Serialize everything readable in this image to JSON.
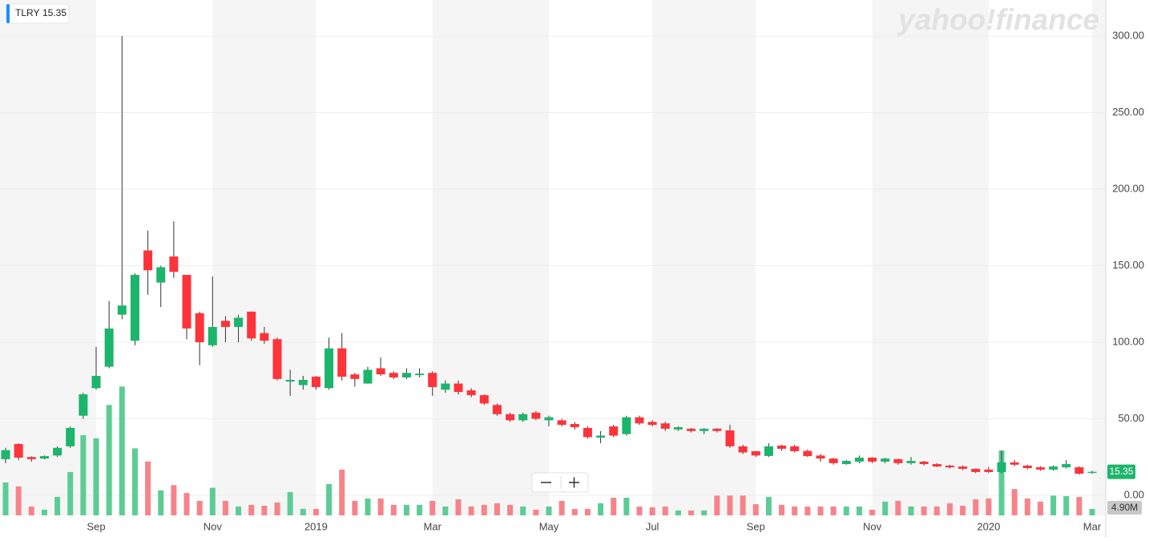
{
  "chart_data": {
    "type": "candlestick",
    "symbol": "TLRY",
    "logo": "yahoo!finance",
    "categories": [
      null,
      null,
      null,
      null,
      null,
      null,
      null,
      "Sep",
      null,
      null,
      null,
      null,
      null,
      null,
      null,
      null,
      "Nov",
      null,
      null,
      null,
      null,
      null,
      null,
      null,
      "2019",
      null,
      null,
      null,
      null,
      null,
      null,
      null,
      null,
      "Mar",
      null,
      null,
      null,
      null,
      null,
      null,
      null,
      null,
      "May",
      null,
      null,
      null,
      null,
      null,
      null,
      null,
      "Jul",
      null,
      null,
      null,
      null,
      null,
      null,
      null,
      "Sep",
      null,
      null,
      null,
      null,
      null,
      null,
      null,
      null,
      "Nov",
      null,
      null,
      null,
      null,
      null,
      null,
      null,
      null,
      "2020",
      null,
      null,
      null,
      null,
      null,
      null,
      null,
      "Mar"
    ],
    "ohlc": {
      "open": [
        23.6,
        33.5,
        25,
        24,
        26,
        32,
        52,
        70,
        84,
        118,
        101,
        160,
        139,
        156,
        144,
        119,
        98,
        114,
        110,
        120,
        106,
        102,
        74.3,
        72,
        77.5,
        70,
        96,
        79,
        73,
        83,
        80,
        77,
        78.5,
        80,
        69,
        73,
        68.6,
        65.4,
        59,
        53,
        49,
        54,
        49,
        49,
        46.6,
        44,
        37.7,
        45,
        40,
        51,
        48,
        47,
        43,
        43.5,
        42,
        43.5,
        42.4,
        32,
        28.8,
        25.7,
        32.5,
        32,
        29,
        26,
        24,
        20.4,
        22,
        24.6,
        22,
        23.6,
        21,
        22,
        20.4,
        19.4,
        18.8,
        17.3,
        16.8,
        15.2,
        21.5,
        19.4,
        18.3,
        16.8,
        18.3,
        18.3,
        14.6
      ],
      "high": [
        31,
        34,
        25.5,
        26,
        32,
        45,
        67,
        97,
        127,
        300,
        145,
        173,
        150,
        179,
        144,
        120,
        143,
        117,
        118,
        120,
        110,
        103,
        82,
        78,
        78,
        103,
        106,
        80,
        84,
        90,
        81,
        83,
        83,
        81,
        75,
        75,
        70,
        66,
        60,
        54,
        54,
        55,
        52,
        50,
        48,
        45,
        42,
        46,
        52,
        52,
        49,
        48,
        45,
        44,
        44,
        44,
        46,
        33,
        29,
        34,
        33,
        33,
        30,
        27,
        24.5,
        23,
        26,
        25,
        24.5,
        24,
        25,
        22.5,
        21,
        20,
        19.5,
        17.5,
        18.5,
        29,
        23,
        20,
        19,
        19.5,
        23,
        19,
        16
      ],
      "low": [
        21,
        23,
        22,
        23.5,
        25,
        31,
        50,
        69,
        83,
        115,
        98,
        131,
        123,
        142,
        102,
        85,
        97,
        100,
        100,
        101,
        99,
        75,
        65,
        69,
        69,
        69,
        75,
        71,
        73,
        78,
        76,
        76,
        77,
        65,
        67,
        66,
        64,
        59,
        52,
        48,
        48,
        49,
        45,
        45,
        43,
        37,
        34,
        38,
        39,
        46,
        45,
        42,
        42,
        41,
        40,
        41,
        31,
        27,
        25,
        25,
        29,
        28,
        25,
        22,
        20,
        20,
        21,
        21,
        21,
        20,
        20,
        19.5,
        18.5,
        17.5,
        16.5,
        14.5,
        14.5,
        14.5,
        19,
        17,
        16,
        16,
        17.5,
        13.5,
        14
      ],
      "close": [
        29.5,
        24.6,
        23.6,
        25.6,
        31,
        44,
        66,
        78,
        109,
        124,
        144,
        147,
        149,
        146,
        109,
        100,
        110,
        110,
        116,
        102.5,
        101,
        76,
        75.4,
        75.4,
        70.7,
        96,
        77.5,
        76,
        82,
        79,
        77,
        80,
        79.5,
        70.7,
        73,
        67.5,
        65.4,
        60,
        53,
        49,
        53,
        50,
        51,
        46,
        44.5,
        38,
        39,
        39,
        51,
        47,
        46,
        43.5,
        44.5,
        42,
        43.5,
        42,
        32,
        28,
        26,
        32,
        30.4,
        28.8,
        25.6,
        24,
        21,
        22.5,
        24.6,
        22,
        24,
        21,
        22.5,
        20.4,
        18.8,
        18.3,
        17.3,
        15.2,
        15.2,
        21.5,
        20,
        17.8,
        16.8,
        18.8,
        20.4,
        14.1,
        15.35
      ],
      "up_color": "#1bb56c",
      "down_color": "#ff333a"
    },
    "volume": {
      "axis": "y2",
      "values": [
        25,
        22,
        6.7,
        4.3,
        14,
        33,
        61,
        58.6,
        84,
        98,
        51,
        41,
        19,
        23,
        17,
        11,
        21,
        11,
        6.7,
        8,
        7.3,
        9.8,
        17.7,
        4.9,
        4.9,
        23.8,
        34.8,
        11,
        12.8,
        12.8,
        8,
        8,
        8,
        11,
        6.7,
        12.2,
        6.7,
        8,
        9.2,
        8,
        6.7,
        4.3,
        6.7,
        11,
        4.9,
        4.9,
        9.2,
        13.4,
        13.4,
        6.7,
        6.1,
        6.7,
        3.7,
        3.7,
        3.7,
        15,
        15,
        15,
        8.5,
        14,
        8,
        6.7,
        6.7,
        6.7,
        6.7,
        6.7,
        6.7,
        4.3,
        10.4,
        11,
        6.7,
        6.7,
        6.7,
        9.2,
        7.3,
        12.2,
        12.8,
        49.4,
        20,
        12.8,
        10.4,
        15,
        14.6,
        14,
        4.9
      ],
      "value_labels": [
        null,
        null,
        null,
        null,
        null,
        null,
        null,
        null,
        null,
        null,
        null,
        null,
        null,
        null,
        null,
        null,
        null,
        null,
        null,
        null,
        null,
        null,
        null,
        null,
        null,
        null,
        null,
        null,
        null,
        null,
        null,
        null,
        null,
        null,
        null,
        null,
        null,
        null,
        null,
        null,
        null,
        null,
        null,
        null,
        null,
        null,
        null,
        null,
        null,
        null,
        null,
        null,
        null,
        null,
        null,
        null,
        null,
        null,
        null,
        null,
        null,
        null,
        null,
        null,
        null,
        null,
        null,
        null,
        null,
        null,
        null,
        null,
        null,
        null,
        null,
        null,
        null,
        null,
        null,
        null,
        null,
        null,
        null,
        null,
        "4.90M"
      ],
      "up_color": "#5ccc95",
      "down_color": "#f7838a"
    },
    "ylim": [
      -13.1,
      323.6
    ],
    "yticks": [
      {
        "value": 0,
        "label": "0.00"
      },
      {
        "value": 50,
        "label": "50.00"
      },
      {
        "value": 100,
        "label": "100.00"
      },
      {
        "value": 150,
        "label": "150.00"
      },
      {
        "value": 200,
        "label": "200.00"
      },
      {
        "value": 250,
        "label": "250.00"
      },
      {
        "value": 300,
        "label": "300.00"
      }
    ],
    "y2lim": [
      0,
      100
    ],
    "grid": true
  }
}
